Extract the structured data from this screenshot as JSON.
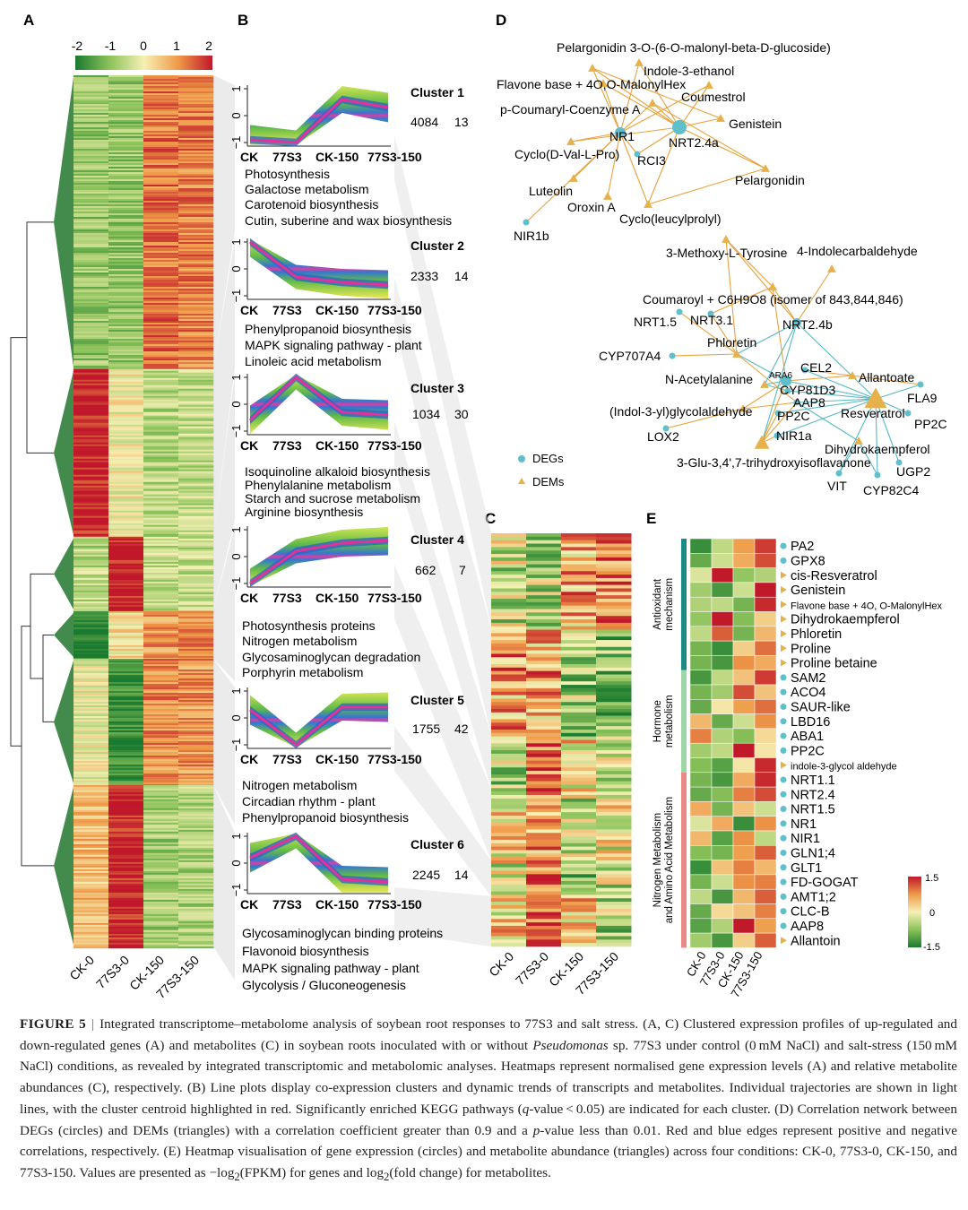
{
  "panel_labels": [
    "A",
    "B",
    "C",
    "D",
    "E"
  ],
  "colors": {
    "heat_low": "#1a7a2f",
    "heat_mid": "#f3f0b0",
    "heat_high": "#c0182a",
    "deg_node": "#5fbfca",
    "dem_node": "#e6b14a",
    "edge_pos": "#e9a23b",
    "edge_neg": "#56b9c4",
    "dendrogram": "#2f7d3a"
  },
  "panel_a": {
    "colorbar_ticks": [
      "-2",
      "-1",
      "0",
      "1",
      "2"
    ],
    "columns": [
      "CK-0",
      "77S3-0",
      "CK-150",
      "77S3-150"
    ],
    "blocks": [
      {
        "name": "block-1",
        "weight": 4084,
        "levels": [
          -0.9,
          -0.9,
          1.3,
          1.2
        ]
      },
      {
        "name": "block-2",
        "weight": 2333,
        "levels": [
          2.0,
          0.0,
          -0.6,
          -0.5
        ]
      },
      {
        "name": "block-3",
        "weight": 1034,
        "levels": [
          -0.6,
          2.0,
          -0.5,
          -0.5
        ]
      },
      {
        "name": "block-4",
        "weight": 662,
        "levels": [
          -2.0,
          0.2,
          1.0,
          1.1
        ]
      },
      {
        "name": "block-5",
        "weight": 1755,
        "levels": [
          -0.1,
          -1.7,
          1.1,
          1.0
        ]
      },
      {
        "name": "block-6",
        "weight": 2245,
        "levels": [
          0.6,
          1.9,
          -0.8,
          -0.7
        ]
      }
    ]
  },
  "panel_b": {
    "x_ticks": [
      "CK",
      "77S3",
      "CK-150",
      "77S3-150"
    ],
    "y_ticks": [
      "1",
      "0",
      "−1"
    ],
    "clusters": [
      {
        "title": "Cluster 1",
        "count": "4084",
        "n": "13",
        "profile": [
          -0.9,
          -1.0,
          0.6,
          0.3
        ],
        "pathways": [
          "Photosynthesis",
          "Galactose metabolism",
          "Carotenoid biosynthesis",
          "Cutin, suberine and wax biosynthesis"
        ]
      },
      {
        "title": "Cluster 2",
        "count": "2333",
        "n": "14",
        "profile": [
          1.0,
          -0.3,
          -0.5,
          -0.6
        ],
        "pathways": [
          "Phenylpropanoid biosynthesis",
          "MAPK signaling pathway - plant",
          "Linoleic acid metabolism"
        ]
      },
      {
        "title": "Cluster 3",
        "count": "1034",
        "n": "30",
        "profile": [
          -0.6,
          1.0,
          -0.3,
          -0.4
        ],
        "pathways": [
          "Isoquinoline alkaloid biosynthesis",
          "Phenylalanine metabolism",
          "Starch and sucrose metabolism",
          "Arginine biosynthesis"
        ]
      },
      {
        "title": "Cluster 4",
        "count": "662",
        "n": "7",
        "profile": [
          -1.0,
          0.2,
          0.5,
          0.6
        ],
        "pathways": [
          "Photosynthesis proteins",
          "Nitrogen metabolism",
          "Glycosaminoglycan degradation",
          "Porphyrin metabolism"
        ]
      },
      {
        "title": "Cluster 5",
        "count": "1755",
        "n": "42",
        "profile": [
          0.3,
          -1.0,
          0.4,
          0.4
        ],
        "pathways": [
          "Nitrogen metabolism",
          "Circadian rhythm - plant",
          "Phenylpropanoid biosynthesis"
        ]
      },
      {
        "title": "Cluster 6",
        "count": "2245",
        "n": "14",
        "profile": [
          0.2,
          1.0,
          -0.6,
          -0.7
        ],
        "pathways": [
          "Glycosaminoglycan binding proteins",
          "Flavonoid biosynthesis",
          "MAPK signaling pathway - plant",
          "Glycolysis / Gluconeogenesis"
        ]
      }
    ]
  },
  "panel_c": {
    "columns": [
      "CK-0",
      "77S3-0",
      "CK-150",
      "77S3-150"
    ]
  },
  "panel_d": {
    "legend": [
      "DEGs",
      "DEMs"
    ],
    "nodes": [
      {
        "id": "pelargonidin-glucoside",
        "label": "Pelargonidin 3-O-(6-O-malonyl-beta-D-glucoside)",
        "kind": "DEM"
      },
      {
        "id": "indole-ethanol",
        "label": "Indole-3-ethanol",
        "kind": "DEM"
      },
      {
        "id": "flavone-base",
        "label": "Flavone base + 4O,O-MalonylHex",
        "kind": "DEM"
      },
      {
        "id": "coumestrol",
        "label": "Coumestrol",
        "kind": "DEM"
      },
      {
        "id": "p-coumaryl",
        "label": "p-Coumaryl-Coenzyme A",
        "kind": "DEM"
      },
      {
        "id": "genistein",
        "label": "Genistein",
        "kind": "DEM"
      },
      {
        "id": "nr1",
        "label": "NR1",
        "kind": "DEG"
      },
      {
        "id": "nrt2-4a",
        "label": "NRT2.4a",
        "kind": "DEG"
      },
      {
        "id": "cyclo-val",
        "label": "Cyclo(D-Val-L-Pro)",
        "kind": "DEM"
      },
      {
        "id": "rci3",
        "label": "RCI3",
        "kind": "DEG"
      },
      {
        "id": "pelargonidin",
        "label": "Pelargonidin",
        "kind": "DEM"
      },
      {
        "id": "luteolin",
        "label": "Luteolin",
        "kind": "DEM"
      },
      {
        "id": "oroxin",
        "label": "Oroxin A",
        "kind": "DEM"
      },
      {
        "id": "cyclo-leucyl",
        "label": "Cyclo(leucylprolyl)",
        "kind": "DEM"
      },
      {
        "id": "nir1b",
        "label": "NIR1b",
        "kind": "DEG"
      },
      {
        "id": "methoxy-tyrosine",
        "label": "3-Methoxy-L-Tyrosine",
        "kind": "DEM"
      },
      {
        "id": "indolecarbaldehyde",
        "label": "4-Indolecarbaldehyde",
        "kind": "DEM"
      },
      {
        "id": "coumaroyl",
        "label": "Coumaroyl + C6H9O8 (isomer of 843,844,846)",
        "kind": "DEM"
      },
      {
        "id": "nrt1-5",
        "label": "NRT1.5",
        "kind": "DEG"
      },
      {
        "id": "nrt3-1",
        "label": "NRT3.1",
        "kind": "DEG"
      },
      {
        "id": "nrt2-4b",
        "label": "NRT2.4b",
        "kind": "DEG"
      },
      {
        "id": "phloretin",
        "label": "Phloretin",
        "kind": "DEM"
      },
      {
        "id": "cyp707a4",
        "label": "CYP707A4",
        "kind": "DEG"
      },
      {
        "id": "ara6",
        "label": "ARA6",
        "kind": "DEG"
      },
      {
        "id": "cel2",
        "label": "CEL2",
        "kind": "DEG"
      },
      {
        "id": "allantoate",
        "label": "Allantoate",
        "kind": "DEM"
      },
      {
        "id": "n-acetylalanine",
        "label": "N-Acetylalanine",
        "kind": "DEM"
      },
      {
        "id": "cyp81d3",
        "label": "CYP81D3",
        "kind": "DEG"
      },
      {
        "id": "fla9",
        "label": "FLA9",
        "kind": "DEG"
      },
      {
        "id": "aap8",
        "label": "AAP8",
        "kind": "DEG"
      },
      {
        "id": "indol-glycolaldehyde",
        "label": "(Indol-3-yl)glycolaldehyde",
        "kind": "DEM"
      },
      {
        "id": "pp2c-a",
        "label": "PP2C",
        "kind": "DEG"
      },
      {
        "id": "resveratrol",
        "label": "Resveratrol",
        "kind": "DEM"
      },
      {
        "id": "pp2c-b",
        "label": "PP2C",
        "kind": "DEG"
      },
      {
        "id": "lox2",
        "label": "LOX2",
        "kind": "DEG"
      },
      {
        "id": "nir1a",
        "label": "NIR1a",
        "kind": "DEG"
      },
      {
        "id": "dihydrokaempferol",
        "label": "Dihydrokaempferol",
        "kind": "DEM"
      },
      {
        "id": "glu-isoflavanone",
        "label": "3-Glu-3,4',7-trihydroxyisoflavanone",
        "kind": "DEM"
      },
      {
        "id": "ugp2",
        "label": "UGP2",
        "kind": "DEG"
      },
      {
        "id": "vit",
        "label": "VIT",
        "kind": "DEG"
      },
      {
        "id": "cyp82c4",
        "label": "CYP82C4",
        "kind": "DEG"
      }
    ]
  },
  "panel_e": {
    "columns": [
      "CK-0",
      "77S3-0",
      "CK-150",
      "77S3-150"
    ],
    "scale_ticks": [
      "1.5",
      "0",
      "-1.5"
    ],
    "groups": [
      {
        "label": "Antioxidant mechanism",
        "color": "#1c8a86",
        "count": 9
      },
      {
        "label": "Hormone metabolism",
        "color": "#9fd6a8",
        "count": 7
      },
      {
        "label": "Nitrogen Metabolism and Amino Acid Metabolism",
        "color": "#e98a86",
        "count": 12
      }
    ],
    "rows": [
      {
        "label": "PA2",
        "kind": "DEG",
        "values": [
          -1.3,
          -0.4,
          0.7,
          1.3
        ]
      },
      {
        "label": "GPX8",
        "kind": "DEG",
        "values": [
          -1.0,
          -0.3,
          0.6,
          1.2
        ]
      },
      {
        "label": "cis-Resveratrol",
        "kind": "DEM",
        "values": [
          -0.2,
          1.5,
          -0.7,
          -0.5
        ]
      },
      {
        "label": "Genistein",
        "kind": "DEM",
        "values": [
          -0.6,
          -1.2,
          -0.3,
          1.5
        ]
      },
      {
        "label": "Flavone base + 4O, O-MalonylHex",
        "kind": "DEM",
        "small": true,
        "values": [
          -0.5,
          -0.4,
          -0.9,
          1.4
        ]
      },
      {
        "label": "Dihydrokaempferol",
        "kind": "DEM",
        "values": [
          -0.7,
          1.5,
          -0.8,
          0.3
        ]
      },
      {
        "label": "Phloretin",
        "kind": "DEM",
        "values": [
          -0.4,
          1.1,
          -0.9,
          0.5
        ]
      },
      {
        "label": "Proline",
        "kind": "DEM",
        "values": [
          -0.9,
          -1.3,
          0.3,
          1.0
        ]
      },
      {
        "label": "Proline betaine",
        "kind": "DEM",
        "values": [
          -0.9,
          -1.2,
          0.8,
          0.6
        ]
      },
      {
        "label": "SAM2",
        "kind": "DEG",
        "values": [
          -1.2,
          -0.4,
          0.4,
          1.3
        ]
      },
      {
        "label": "ACO4",
        "kind": "DEG",
        "values": [
          -0.9,
          -0.6,
          1.2,
          0.4
        ]
      },
      {
        "label": "SAUR-like",
        "kind": "DEG",
        "values": [
          -1.0,
          0.1,
          0.7,
          1.0
        ]
      },
      {
        "label": "LBD16",
        "kind": "DEG",
        "values": [
          0.5,
          -1.0,
          -0.3,
          0.8
        ]
      },
      {
        "label": "ABA1",
        "kind": "DEG",
        "values": [
          0.9,
          -0.5,
          -0.8,
          0.2
        ]
      },
      {
        "label": "PP2C",
        "kind": "DEG",
        "values": [
          -0.6,
          -0.4,
          1.5,
          0.1
        ]
      },
      {
        "label": "indole-3-glycol aldehyde",
        "kind": "DEM",
        "small": true,
        "values": [
          -0.8,
          -1.1,
          0.1,
          1.4
        ]
      },
      {
        "label": "NRT1.1",
        "kind": "DEG",
        "values": [
          -0.9,
          -1.2,
          0.6,
          1.4
        ]
      },
      {
        "label": "NRT2.4",
        "kind": "DEG",
        "values": [
          -1.0,
          -0.8,
          0.9,
          1.2
        ]
      },
      {
        "label": "NRT1.5",
        "kind": "DEG",
        "values": [
          0.6,
          -0.9,
          0.4,
          -0.3
        ]
      },
      {
        "label": "NR1",
        "kind": "DEG",
        "values": [
          -0.2,
          0.6,
          -1.3,
          0.8
        ]
      },
      {
        "label": "NIR1",
        "kind": "DEG",
        "values": [
          0.5,
          -1.1,
          0.8,
          -0.4
        ]
      },
      {
        "label": "GLN1;4",
        "kind": "DEG",
        "values": [
          -0.8,
          -0.9,
          0.7,
          1.1
        ]
      },
      {
        "label": "GLT1",
        "kind": "DEG",
        "values": [
          -1.3,
          0.4,
          0.9,
          0.5
        ]
      },
      {
        "label": "FD-GOGAT",
        "kind": "DEG",
        "values": [
          -0.9,
          -0.3,
          0.8,
          0.9
        ]
      },
      {
        "label": "AMT1;2",
        "kind": "DEG",
        "values": [
          -0.4,
          -1.2,
          0.5,
          1.1
        ]
      },
      {
        "label": "CLC-B",
        "kind": "DEG",
        "values": [
          -1.0,
          0.2,
          0.4,
          0.9
        ]
      },
      {
        "label": "AAP8",
        "kind": "DEG",
        "values": [
          -1.1,
          -0.5,
          1.5,
          0.7
        ]
      },
      {
        "label": "Allantoin",
        "kind": "DEM",
        "values": [
          -0.6,
          -1.2,
          0.3,
          1.1
        ]
      }
    ]
  },
  "caption": {
    "fig_label": "FIGURE 5",
    "separator": "|",
    "part1": "Integrated transcriptome–metabolome analysis of soybean root responses to 77S3 and salt stress. (A, C) Clustered expression profiles of up-regulated and down-regulated genes (A) and metabolites (C) in soybean roots inoculated with or without ",
    "species": "Pseudomonas",
    "part2": " sp. 77S3 under control (0 mM NaCl) and salt-stress (150 mM NaCl) conditions, as revealed by integrated transcriptomic and metabolomic analyses. Heatmaps represent normalised gene expression levels (A) and relative metabolite abundances (C), respectively. (B) Line plots display co-expression clusters and dynamic trends of transcripts and metabolites. Individual trajectories are shown in light lines, with the cluster centroid highlighted in red. Significantly enriched KEGG pathways (",
    "qvalue": "q",
    "part3": "-value < 0.05) are indicated for each cluster. (D) Correlation network between DEGs (circles) and DEMs (triangles) with a correlation coefficient greater than 0.9 and a ",
    "pvalue": "p",
    "part4": "-value less than 0.01. Red and blue edges represent positive and negative correlations, respectively. (E) Heatmap visualisation of gene expression (circles) and metabolite abundance (triangles) across four conditions: CK-0, 77S3-0, CK-150, and 77S3-150. Values are presented as −log",
    "sub1": "2",
    "part5": "(FPKM) for genes and log",
    "sub2": "2",
    "part6": "(fold change) for metabolites."
  }
}
